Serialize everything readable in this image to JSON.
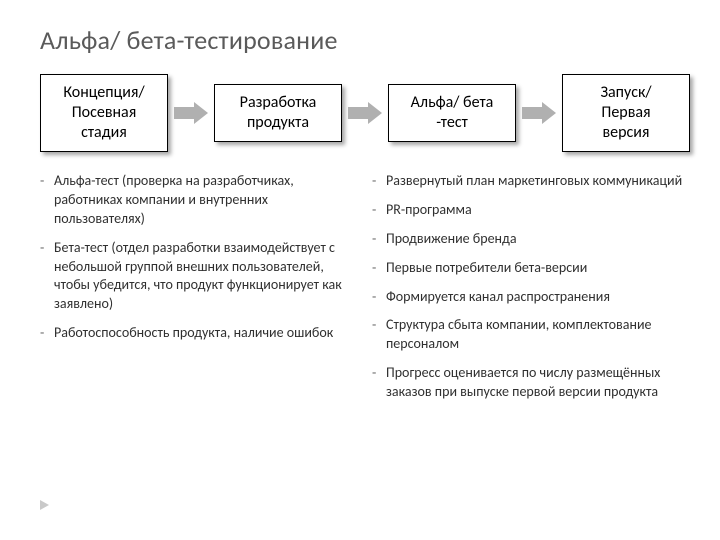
{
  "title": "Альфа/ бета-тестирование",
  "flow": {
    "stages": [
      "Концепция/\nПосевная\nстадия",
      "Разработка\nпродукта",
      "Альфа/ бета\n-тест",
      "Запуск/\nПервая\nверсия"
    ],
    "arrow_color": "#b0b0b0",
    "stage_border": "#000000",
    "stage_shadow": "rgba(0,0,0,0.35)"
  },
  "left_bullets": [
    "Альфа-тест (проверка на разработчиках, работниках компании и внутренних пользователях)",
    "Бета-тест (отдел разработки взаимодействует с небольшой группой внешних пользователей, чтобы убедится, что продукт функционирует как заявлено)",
    "Работоспособность продукта, наличие ошибок"
  ],
  "right_bullets": [
    "Развернутый план маркетинговых коммуникаций",
    "PR-программа",
    "Продвижение бренда",
    "Первые потребители бета-версии",
    "Формируется канал распространения",
    "Структура сбыта компании, комплектование персоналом",
    "Прогресс оценивается по числу размещённых заказов при выпуске первой версии продукта"
  ],
  "styling": {
    "background": "#ffffff",
    "title_color": "#5a5a5a",
    "title_fontsize": 26,
    "stage_fontsize": 16,
    "bullet_fontsize": 14,
    "text_color": "#303030",
    "corner_mark_color": "#c9c9c9"
  }
}
